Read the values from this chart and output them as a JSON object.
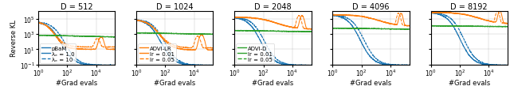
{
  "panels": [
    {
      "title": "D = 512",
      "legend_label": "pBaM",
      "legend_solid": "λₑ = 1.0",
      "legend_dashed": "λₑ = 10",
      "legend_color": "blue"
    },
    {
      "title": "D = 1024",
      "legend_label": "ADVI-LR",
      "legend_solid": "lr = 0.01",
      "legend_dashed": "lr = 0.05",
      "legend_color": "orange"
    },
    {
      "title": "D = 2048",
      "legend_label": "ADVI-D",
      "legend_solid": "lr = 0.01",
      "legend_dashed": "lr = 0.05",
      "legend_color": "green"
    },
    {
      "title": "D = 4096",
      "legend_label": null,
      "legend_solid": null,
      "legend_dashed": null,
      "legend_color": null
    },
    {
      "title": "D = 8192",
      "legend_label": null,
      "legend_solid": null,
      "legend_dashed": null,
      "legend_color": null
    }
  ],
  "ylabel": "Reverse KL",
  "xlabel": "#Grad evals",
  "blue_color": "#1f77b4",
  "orange_color": "#ff7f0e",
  "green_color": "#2ca02c",
  "figsize": [
    6.4,
    1.15
  ],
  "dpi": 100
}
